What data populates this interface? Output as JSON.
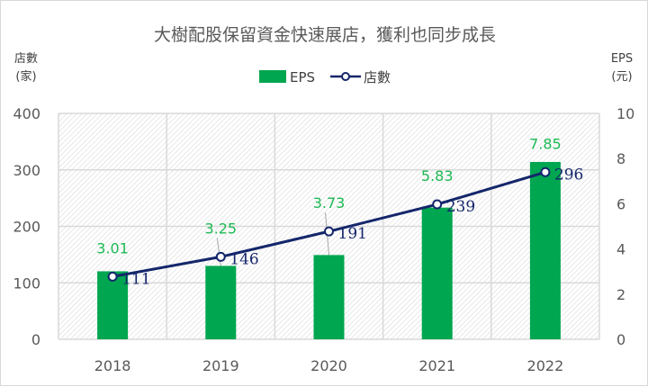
{
  "chart_data": {
    "type": "bar+line",
    "title": "大樹配股保留資金快速展店，獲利也同步成長",
    "categories": [
      "2018",
      "2019",
      "2020",
      "2021",
      "2022"
    ],
    "series": [
      {
        "name": "EPS",
        "type": "bar",
        "axis": "right",
        "values": [
          3.01,
          3.25,
          3.73,
          5.83,
          7.85
        ],
        "color": "#00a650",
        "label_color": "#1db954"
      },
      {
        "name": "店數",
        "type": "line",
        "axis": "left",
        "values": [
          111,
          146,
          191,
          239,
          296
        ],
        "color": "#14266b"
      }
    ],
    "yleft": {
      "label": [
        "店數",
        "(家)"
      ],
      "range": [
        0,
        400
      ],
      "ticks": [
        0,
        100,
        200,
        300,
        400
      ]
    },
    "yright": {
      "label": [
        "EPS",
        "(元)"
      ],
      "range": [
        0,
        10
      ],
      "ticks": [
        0,
        2,
        4,
        6,
        8,
        10
      ]
    },
    "grid": true,
    "legend": "top"
  }
}
